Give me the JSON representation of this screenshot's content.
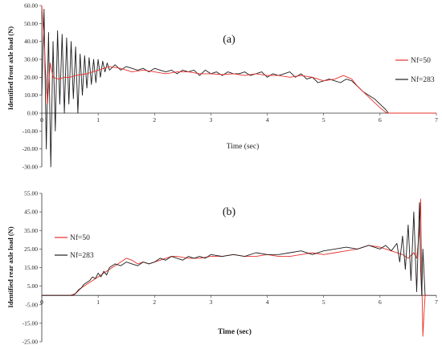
{
  "chart_data": [
    {
      "type": "line",
      "panel_label": "(a)",
      "ylabel": "Identified front axle load (N)",
      "xlabel": "Time (sec)",
      "xlim": [
        0,
        7
      ],
      "ylim": [
        -30,
        60
      ],
      "xticks": [
        "0",
        "1",
        "2",
        "3",
        "4",
        "5",
        "6",
        "7"
      ],
      "yticks": [
        "60.00",
        "50.00",
        "40.00",
        "30.00",
        "20.00",
        "10.00",
        "0.00",
        "-10.00",
        "-20.00",
        "-30.00"
      ],
      "legend_position": "right",
      "series": [
        {
          "name": "Nf=50",
          "color": "#e8302a",
          "x": [
            0,
            0.05,
            0.1,
            0.15,
            0.2,
            0.3,
            0.4,
            0.5,
            0.6,
            0.7,
            0.8,
            0.9,
            1.0,
            1.1,
            1.2,
            1.4,
            1.6,
            1.8,
            2.0,
            2.2,
            2.4,
            2.6,
            2.8,
            3.0,
            3.2,
            3.4,
            3.6,
            3.8,
            4.0,
            4.2,
            4.4,
            4.6,
            4.8,
            5.0,
            5.2,
            5.35,
            5.5,
            5.6,
            5.7,
            5.8,
            5.9,
            6.0,
            6.1,
            6.15,
            6.2,
            6.5,
            7.0
          ],
          "y": [
            60,
            35,
            5,
            28,
            20,
            19,
            20,
            20,
            21,
            21.5,
            22,
            23,
            24,
            25,
            26,
            25,
            23,
            24,
            23,
            22,
            23,
            23,
            22,
            22,
            21.5,
            22,
            21,
            22,
            21,
            21,
            20,
            21,
            20,
            18,
            19,
            21,
            19,
            15,
            12,
            9,
            6,
            3,
            0.5,
            0,
            0,
            0,
            0
          ]
        },
        {
          "name": "Nf=283",
          "color": "#1e1e1e",
          "x": [
            0,
            0.04,
            0.08,
            0.12,
            0.16,
            0.2,
            0.24,
            0.28,
            0.32,
            0.36,
            0.4,
            0.44,
            0.48,
            0.52,
            0.56,
            0.6,
            0.64,
            0.68,
            0.72,
            0.76,
            0.8,
            0.84,
            0.88,
            0.92,
            0.96,
            1.0,
            1.04,
            1.08,
            1.12,
            1.16,
            1.2,
            1.3,
            1.4,
            1.5,
            1.6,
            1.7,
            1.8,
            1.9,
            2.0,
            2.1,
            2.2,
            2.3,
            2.4,
            2.5,
            2.6,
            2.7,
            2.8,
            2.9,
            3.0,
            3.1,
            3.2,
            3.3,
            3.4,
            3.5,
            3.6,
            3.7,
            3.8,
            3.9,
            4.0,
            4.1,
            4.2,
            4.3,
            4.4,
            4.5,
            4.6,
            4.7,
            4.8,
            4.9,
            5.0,
            5.1,
            5.2,
            5.3,
            5.4,
            5.5,
            5.6,
            5.7,
            5.8,
            5.9,
            6.0,
            6.1,
            6.15,
            6.2,
            6.5,
            7.0
          ],
          "y": [
            10,
            58,
            -20,
            45,
            -30,
            40,
            -10,
            46,
            5,
            44,
            0,
            42,
            5,
            40,
            8,
            37,
            0,
            33,
            10,
            32,
            14,
            31,
            16,
            30,
            17,
            30,
            20,
            29,
            23,
            28,
            24,
            27,
            24,
            26,
            25,
            24,
            25,
            23,
            25,
            24,
            23,
            24,
            22,
            24,
            23,
            24,
            21,
            24,
            22,
            23,
            21,
            23,
            22,
            22,
            23,
            21,
            22,
            23,
            20,
            22,
            21,
            22,
            23,
            20,
            22,
            19,
            20,
            17,
            18,
            19,
            18,
            17,
            19,
            18,
            15,
            12,
            10,
            8,
            5,
            2,
            0,
            0,
            0,
            0
          ]
        }
      ]
    },
    {
      "type": "line",
      "panel_label": "(b)",
      "ylabel": "Identified rear axle load (N)",
      "xlabel": "Time (sec)",
      "xlim": [
        0,
        7
      ],
      "ylim": [
        -25,
        55
      ],
      "xticks": [
        "0",
        "1",
        "2",
        "3",
        "4",
        "5",
        "6",
        "7"
      ],
      "yticks": [
        "55.00",
        "45.00",
        "35.00",
        "25.00",
        "15.00",
        "5.00",
        "-5.00",
        "-15.00",
        "-25.00"
      ],
      "legend_position": "left",
      "series": [
        {
          "name": "Nf=50",
          "color": "#e8302a",
          "x": [
            0,
            0.5,
            0.6,
            0.7,
            0.8,
            0.9,
            1.0,
            1.1,
            1.2,
            1.3,
            1.4,
            1.5,
            1.6,
            1.7,
            1.8,
            1.9,
            2.0,
            2.1,
            2.2,
            2.3,
            2.4,
            2.6,
            2.8,
            3.0,
            3.2,
            3.4,
            3.6,
            3.8,
            4.0,
            4.2,
            4.4,
            4.6,
            4.8,
            5.0,
            5.2,
            5.4,
            5.6,
            5.8,
            6.0,
            6.2,
            6.4,
            6.5,
            6.6,
            6.65,
            6.7,
            6.72,
            6.74,
            6.76,
            6.78,
            6.8,
            6.85
          ],
          "y": [
            0,
            0,
            1,
            4,
            6,
            8,
            10,
            12,
            14,
            16,
            18,
            20,
            19,
            17,
            18,
            17,
            18,
            19,
            20,
            21,
            21,
            20,
            20,
            21,
            21,
            22,
            21,
            21,
            22,
            21,
            21,
            22,
            23,
            22,
            23,
            24,
            25,
            27,
            26,
            24,
            22,
            20,
            23,
            20,
            35,
            52,
            10,
            -22,
            -10,
            0,
            0
          ]
        },
        {
          "name": "Nf=283",
          "color": "#1e1e1e",
          "x": [
            0,
            0.55,
            0.6,
            0.65,
            0.7,
            0.75,
            0.8,
            0.85,
            0.9,
            0.95,
            1.0,
            1.05,
            1.1,
            1.15,
            1.2,
            1.3,
            1.4,
            1.5,
            1.6,
            1.7,
            1.8,
            1.9,
            2.0,
            2.1,
            2.2,
            2.3,
            2.4,
            2.5,
            2.6,
            2.7,
            2.8,
            2.9,
            3.0,
            3.2,
            3.4,
            3.6,
            3.8,
            4.0,
            4.2,
            4.4,
            4.6,
            4.8,
            5.0,
            5.2,
            5.4,
            5.6,
            5.8,
            6.0,
            6.1,
            6.2,
            6.3,
            6.35,
            6.4,
            6.45,
            6.5,
            6.55,
            6.6,
            6.65,
            6.7,
            6.72,
            6.74,
            6.76,
            6.8
          ],
          "y": [
            0,
            0,
            1,
            3,
            4,
            6,
            7,
            8,
            10,
            9,
            12,
            10,
            13,
            11,
            15,
            17,
            16,
            18,
            17,
            16,
            18,
            17,
            18,
            20,
            19,
            21,
            20,
            19,
            21,
            20,
            21,
            20,
            22,
            21,
            22,
            21,
            23,
            22,
            22,
            23,
            24,
            22,
            24,
            25,
            26,
            25,
            27,
            25,
            27,
            24,
            28,
            18,
            32,
            14,
            38,
            8,
            45,
            2,
            50,
            15,
            0,
            25,
            0
          ]
        }
      ]
    }
  ]
}
